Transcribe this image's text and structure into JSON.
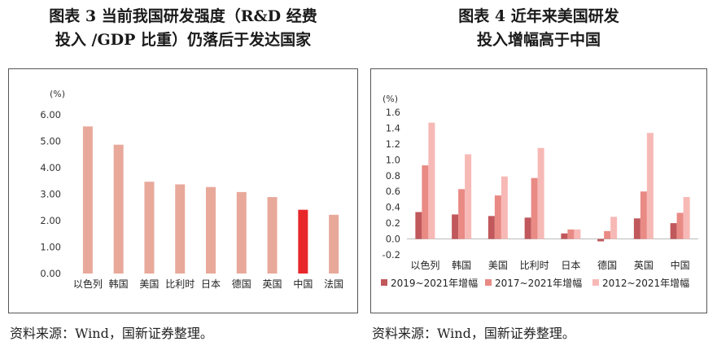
{
  "chart_data": [
    {
      "type": "bar",
      "title_lines": [
        "图表 3  当前我国研发强度（R&D 经费",
        "投入 /GDP 比重）仍落后于发达国家"
      ],
      "unit_label": "(%)",
      "categories": [
        "以色列",
        "韩国",
        "美国",
        "比利时",
        "日本",
        "德国",
        "英国",
        "中国",
        "法国"
      ],
      "values": [
        5.56,
        4.87,
        3.47,
        3.37,
        3.27,
        3.08,
        2.89,
        2.41,
        2.22
      ],
      "highlight_category": "中国",
      "ylim": [
        0,
        6
      ],
      "yticks": [
        "0.00",
        "1.00",
        "2.00",
        "3.00",
        "4.00",
        "5.00",
        "6.00"
      ],
      "colors": {
        "bar": "#e8a99b",
        "highlight": "#e8272a"
      },
      "grid": false,
      "source": "资料来源：Wind，国新证券整理。"
    },
    {
      "type": "bar",
      "title_lines": [
        "图表 4  近年来美国研发",
        "投入增幅高于中国"
      ],
      "unit_label": "(%)",
      "categories": [
        "以色列",
        "韩国",
        "美国",
        "比利时",
        "日本",
        "德国",
        "英国",
        "中国"
      ],
      "series": [
        {
          "name": "2019~2021年增幅",
          "color": "#c0585c",
          "values": [
            0.34,
            0.31,
            0.29,
            0.27,
            0.07,
            -0.03,
            0.26,
            0.2
          ]
        },
        {
          "name": "2017~2021年增幅",
          "color": "#e98a85",
          "values": [
            0.93,
            0.63,
            0.55,
            0.77,
            0.12,
            0.1,
            0.6,
            0.33
          ]
        },
        {
          "name": "2012~2021年增幅",
          "color": "#f7b9b6",
          "values": [
            1.47,
            1.07,
            0.79,
            1.15,
            0.12,
            0.28,
            1.34,
            0.53
          ]
        }
      ],
      "ylim": [
        -0.2,
        1.6
      ],
      "yticks": [
        "-0.2",
        "0.0",
        "0.2",
        "0.4",
        "0.6",
        "0.8",
        "1.0",
        "1.2",
        "1.4",
        "1.6"
      ],
      "legend_position": "bottom",
      "grid": false,
      "source": "资料来源：Wind，国新证券整理。"
    }
  ]
}
